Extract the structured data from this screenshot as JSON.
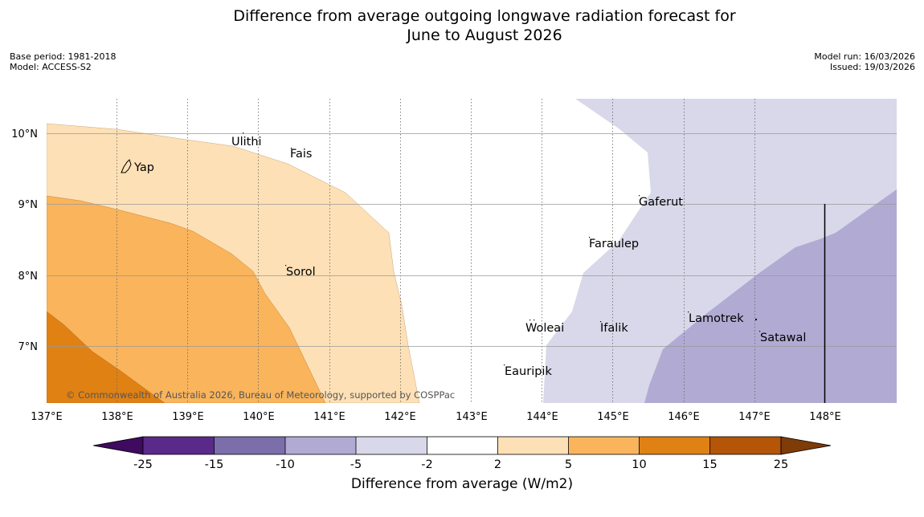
{
  "title_line1": "Difference from average outgoing longwave radiation forecast for",
  "title_line2": "June to August 2026",
  "base_period": "Base period: 1981-2018",
  "model": "Model: ACCESS-S2",
  "model_run": "Model run: 16/03/2026",
  "issued": "Issued: 19/03/2026",
  "copyright": "© Commonwealth of Australia 2026, Bureau of Meteorology, supported by COSPPac",
  "lon_labels": [
    "137°E",
    "138°E",
    "139°E",
    "140°E",
    "141°E",
    "142°E",
    "143°E",
    "144°E",
    "145°E",
    "146°E",
    "147°E",
    "148°E"
  ],
  "lat_labels": [
    "10°N",
    "9°N",
    "8°N",
    "7°N"
  ],
  "places": [
    "Ulithi",
    "Fais",
    "Yap",
    "Gaferut",
    "Faraulep",
    "Sorol",
    "Lamotrek",
    "Woleai",
    "Ifalik",
    "Satawal",
    "Eauripik"
  ],
  "colorbar": {
    "label": "Difference from average (W/m2)",
    "ticks": [
      "-25",
      "-15",
      "-10",
      "-5",
      "-2",
      "2",
      "5",
      "10",
      "15",
      "25"
    ],
    "colors": [
      "#3f0a60",
      "#5a2a8a",
      "#7c6dab",
      "#b1aad3",
      "#d8d8ea",
      "#ffffff",
      "#fde0b6",
      "#f9b45c",
      "#e08114",
      "#b45507",
      "#7f3b08"
    ]
  }
}
